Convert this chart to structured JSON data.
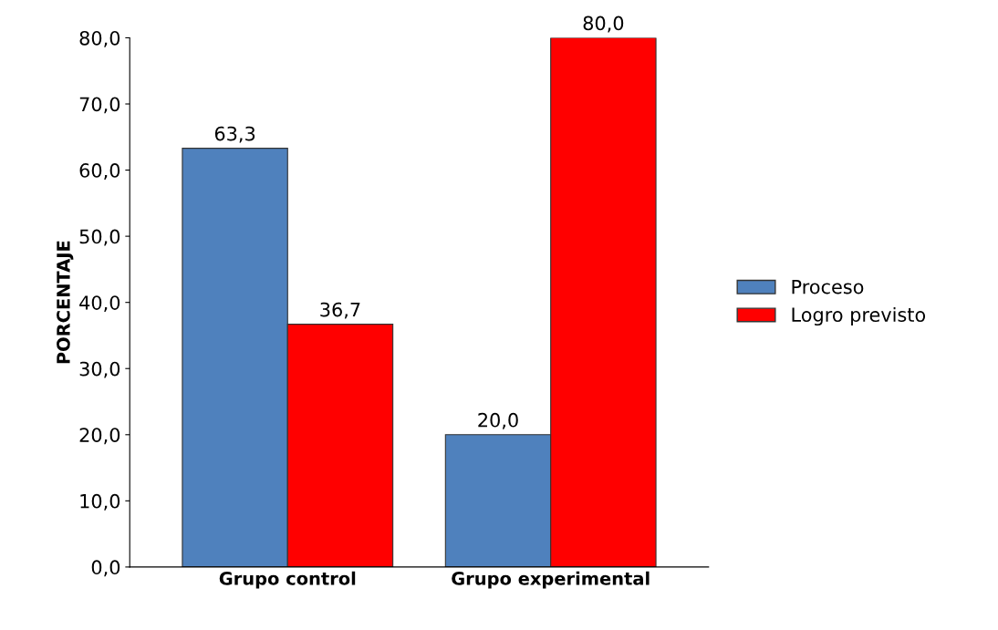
{
  "chart_data": {
    "type": "bar",
    "ylabel": "PORCENTAJE",
    "categories": [
      "Grupo control",
      "Grupo experimental"
    ],
    "series": [
      {
        "name": "Proceso",
        "color": "#4f81bd",
        "values": [
          63.3,
          20.0
        ],
        "value_labels": [
          "63,3",
          "20,0"
        ]
      },
      {
        "name": "Logro previsto",
        "color": "#ff0000",
        "values": [
          36.7,
          80.0
        ],
        "value_labels": [
          "36,7",
          "80,0"
        ]
      }
    ],
    "ylim": [
      0,
      80
    ],
    "yticks": [
      {
        "value": 0,
        "label": "0,0"
      },
      {
        "value": 10,
        "label": "10,0"
      },
      {
        "value": 20,
        "label": "20,0"
      },
      {
        "value": 30,
        "label": "30,0"
      },
      {
        "value": 40,
        "label": "40,0"
      },
      {
        "value": 50,
        "label": "50,0"
      },
      {
        "value": 60,
        "label": "60,0"
      },
      {
        "value": 70,
        "label": "70,0"
      },
      {
        "value": 80,
        "label": "80,0"
      }
    ],
    "grid": false,
    "legend": "right"
  }
}
